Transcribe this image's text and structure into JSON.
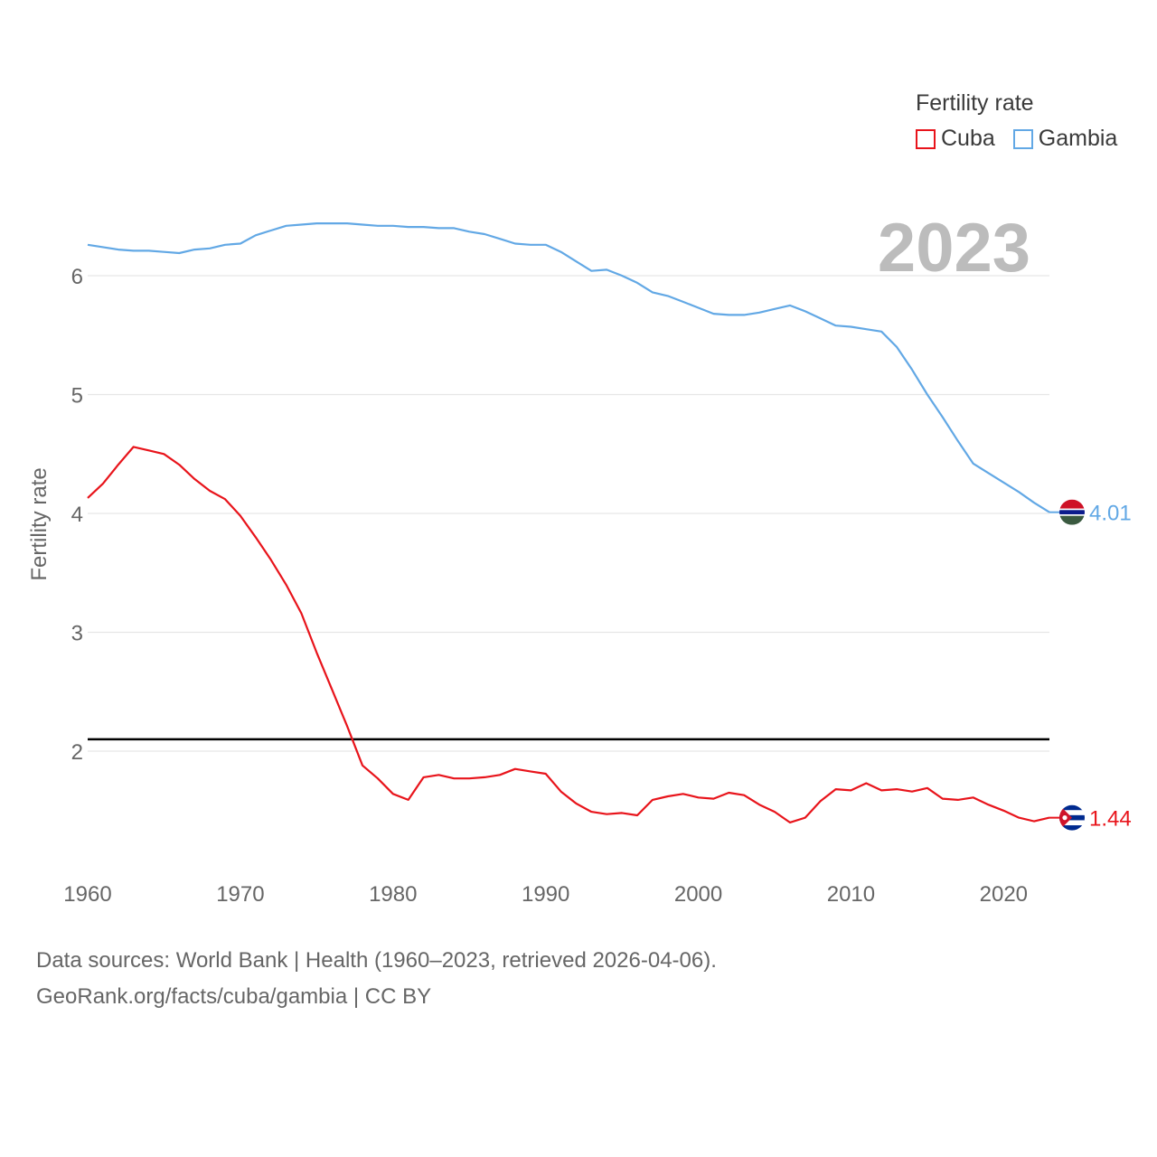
{
  "legend": {
    "title": "Fertility rate",
    "items": [
      {
        "label": "Cuba",
        "color": "#e8141b"
      },
      {
        "label": "Gambia",
        "color": "#62a8e5"
      }
    ]
  },
  "footer": {
    "line1": "Data sources: World Bank | Health (1960–2023, retrieved 2026-04-06).",
    "line2": "GeoRank.org/facts/cuba/gambia | CC BY"
  },
  "chart_data": {
    "type": "line",
    "title": "2023",
    "ylabel": "Fertility rate",
    "xlabel": "",
    "xlim": [
      1960,
      2023
    ],
    "ylim": [
      0.9,
      6.6
    ],
    "yticks": [
      2,
      3,
      4,
      5,
      6
    ],
    "xticks": [
      1960,
      1970,
      1980,
      1990,
      2000,
      2010,
      2020
    ],
    "reference_line": 2.1,
    "x": [
      1960,
      1961,
      1962,
      1963,
      1964,
      1965,
      1966,
      1967,
      1968,
      1969,
      1970,
      1971,
      1972,
      1973,
      1974,
      1975,
      1976,
      1977,
      1978,
      1979,
      1980,
      1981,
      1982,
      1983,
      1984,
      1985,
      1986,
      1987,
      1988,
      1989,
      1990,
      1991,
      1992,
      1993,
      1994,
      1995,
      1996,
      1997,
      1998,
      1999,
      2000,
      2001,
      2002,
      2003,
      2004,
      2005,
      2006,
      2007,
      2008,
      2009,
      2010,
      2011,
      2012,
      2013,
      2014,
      2015,
      2016,
      2017,
      2018,
      2019,
      2020,
      2021,
      2022,
      2023
    ],
    "series": [
      {
        "name": "Cuba",
        "color": "#e8141b",
        "end_label": "1.44",
        "values": [
          4.13,
          4.25,
          4.41,
          4.56,
          4.53,
          4.5,
          4.41,
          4.29,
          4.19,
          4.12,
          3.98,
          3.8,
          3.61,
          3.4,
          3.16,
          2.83,
          2.52,
          2.21,
          1.88,
          1.77,
          1.64,
          1.59,
          1.78,
          1.8,
          1.77,
          1.77,
          1.78,
          1.8,
          1.85,
          1.83,
          1.81,
          1.66,
          1.56,
          1.49,
          1.47,
          1.48,
          1.46,
          1.59,
          1.62,
          1.64,
          1.61,
          1.6,
          1.65,
          1.63,
          1.55,
          1.49,
          1.4,
          1.44,
          1.58,
          1.68,
          1.67,
          1.73,
          1.67,
          1.68,
          1.66,
          1.69,
          1.6,
          1.59,
          1.61,
          1.55,
          1.5,
          1.44,
          1.41,
          1.44
        ]
      },
      {
        "name": "Gambia",
        "color": "#62a8e5",
        "end_label": "4.01",
        "values": [
          6.26,
          6.24,
          6.22,
          6.21,
          6.21,
          6.2,
          6.19,
          6.22,
          6.23,
          6.26,
          6.27,
          6.34,
          6.38,
          6.42,
          6.43,
          6.44,
          6.44,
          6.44,
          6.43,
          6.42,
          6.42,
          6.41,
          6.41,
          6.4,
          6.4,
          6.37,
          6.35,
          6.31,
          6.27,
          6.26,
          6.26,
          6.2,
          6.12,
          6.04,
          6.05,
          6.0,
          5.94,
          5.86,
          5.83,
          5.78,
          5.73,
          5.68,
          5.67,
          5.67,
          5.69,
          5.72,
          5.75,
          5.7,
          5.64,
          5.58,
          5.57,
          5.55,
          5.53,
          5.4,
          5.21,
          5.0,
          4.81,
          4.61,
          4.42,
          4.34,
          4.26,
          4.18,
          4.09,
          4.01
        ]
      }
    ]
  }
}
